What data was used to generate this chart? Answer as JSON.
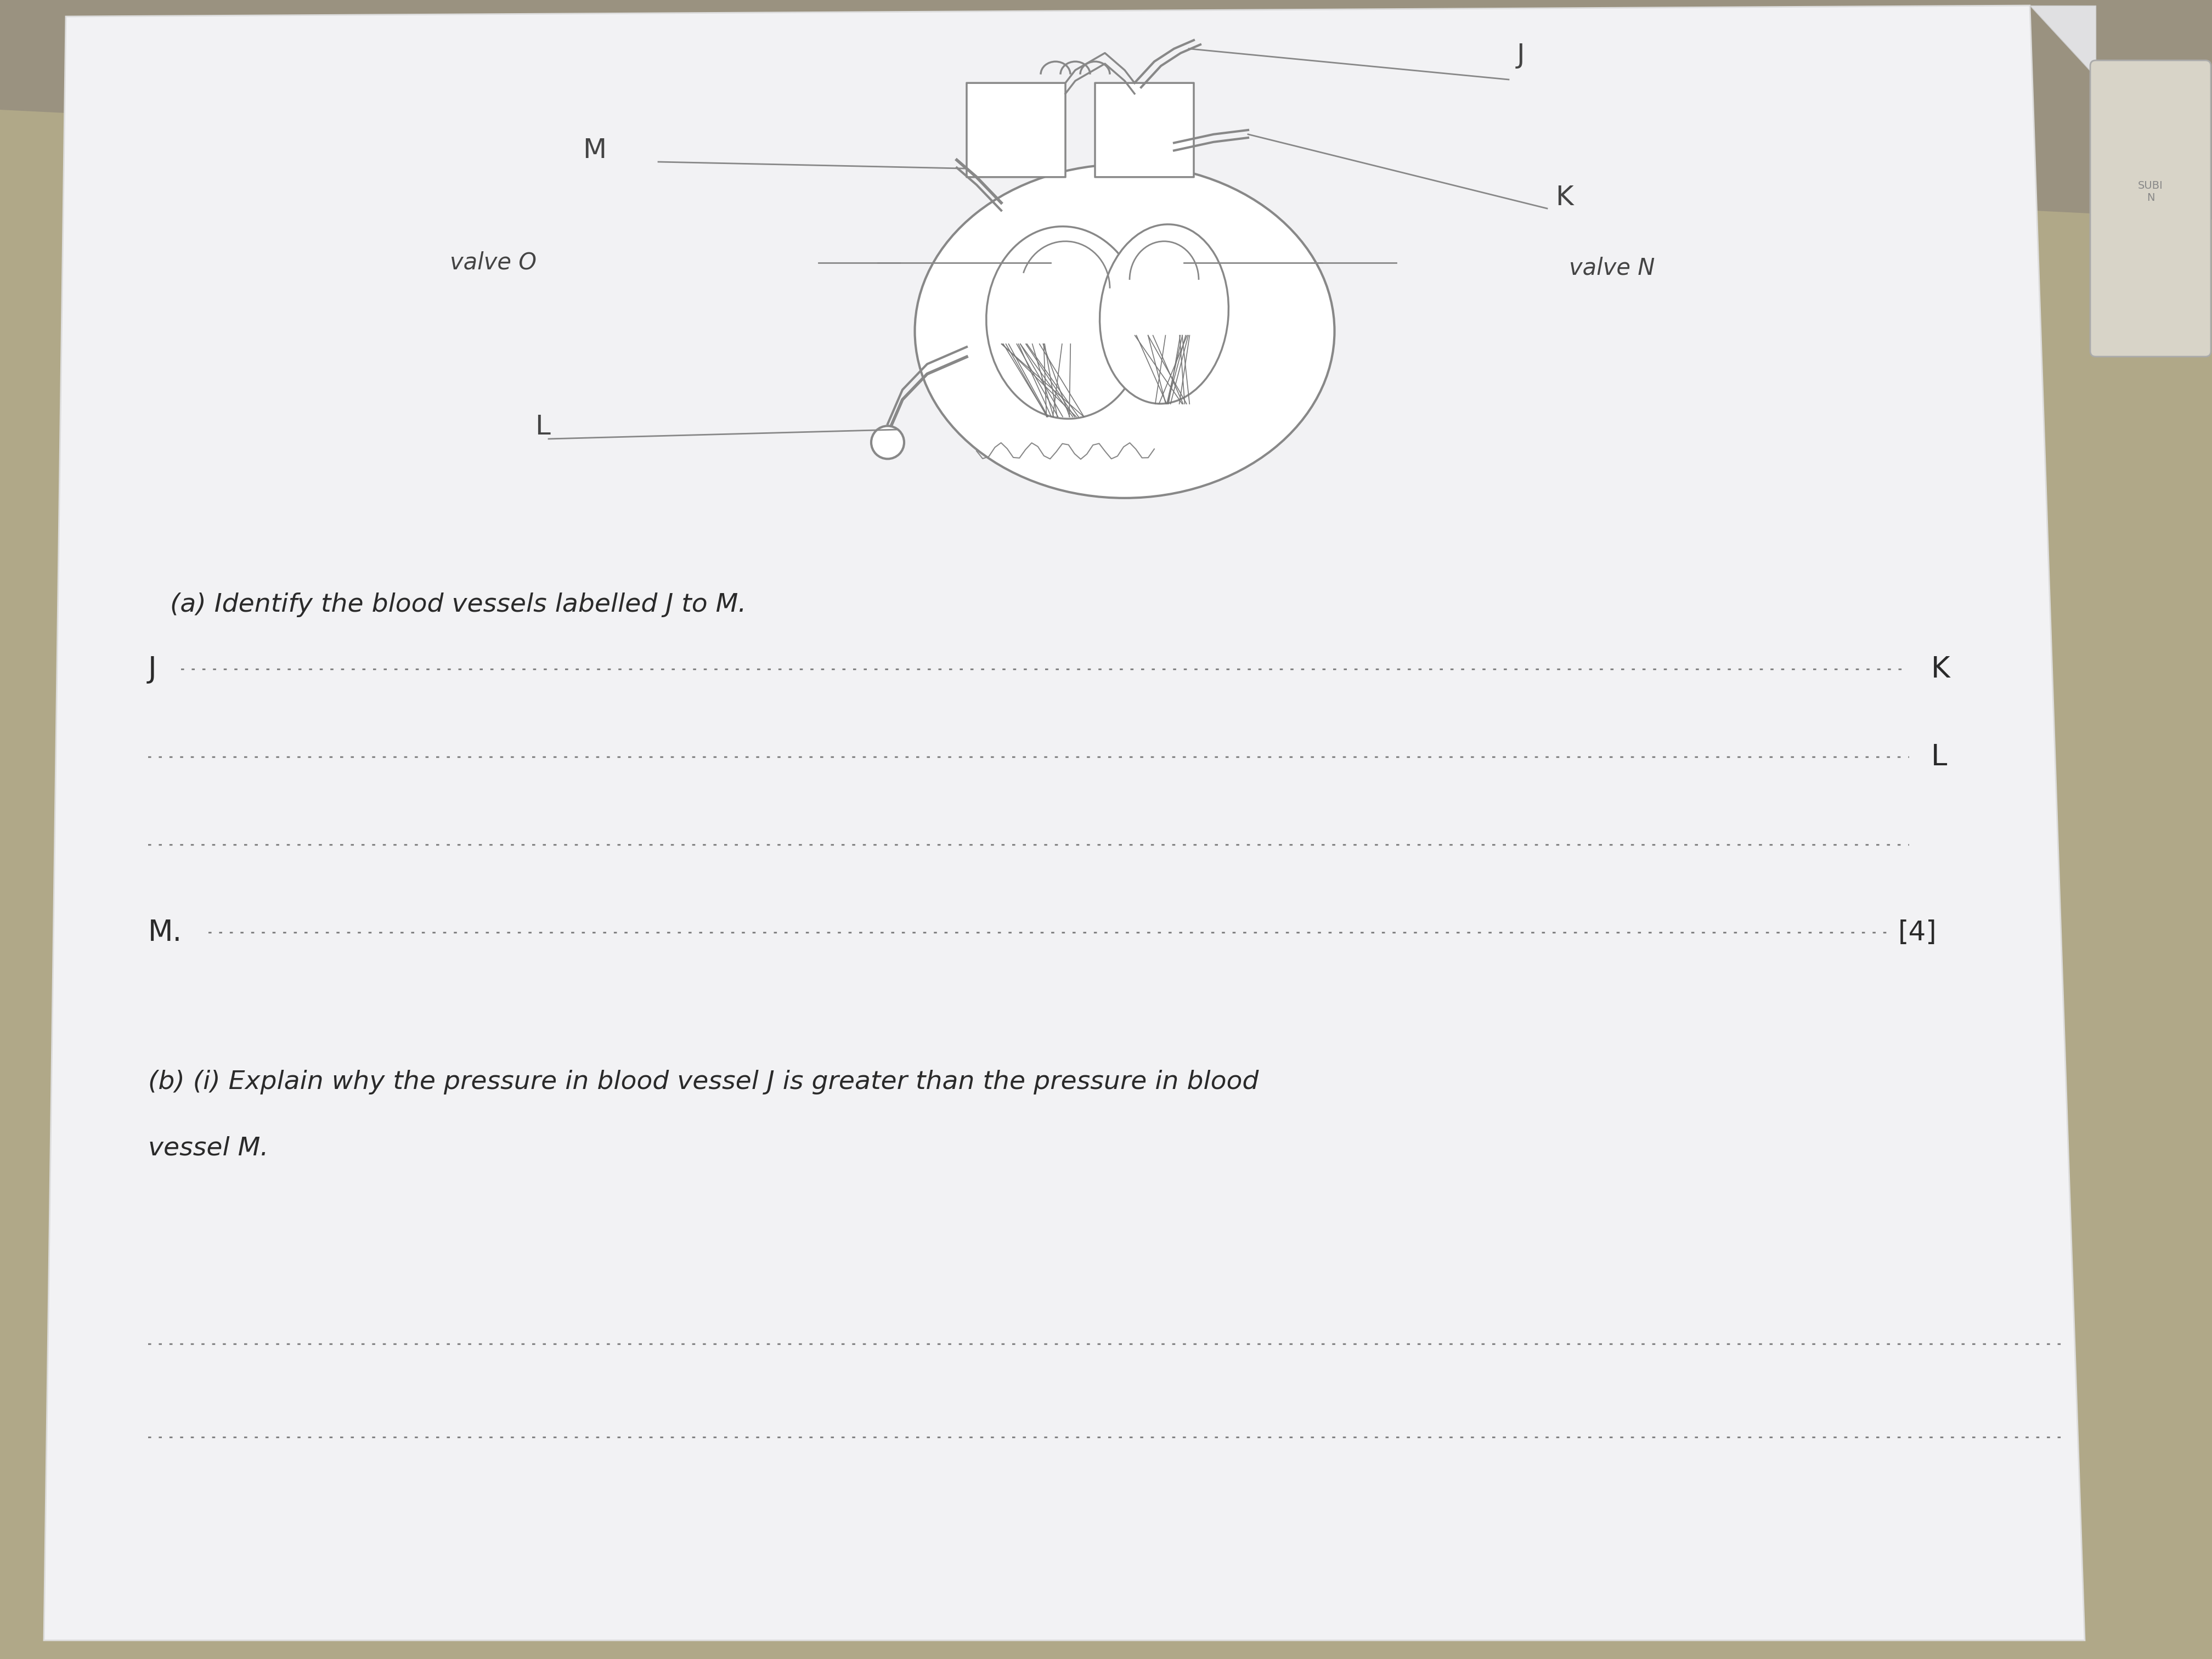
{
  "bg_top_color": "#b8b090",
  "bg_bottom_color": "#a09878",
  "paper_color": "#e8e8ea",
  "text_color": "#2a2a2a",
  "line_color": "#555555",
  "title_a": "(a) Identify the blood vessels labelled J to M.",
  "title_b": "(b) (i) Explain why the pressure in blood vessel J is greater than the pressure in blood",
  "title_b2": "vessel M.",
  "marks": "[4]",
  "font_size_label": 36,
  "font_size_text": 34,
  "font_size_small": 30,
  "dotted_color": "#777777",
  "heart_color": "#888888",
  "label_color": "#444444"
}
